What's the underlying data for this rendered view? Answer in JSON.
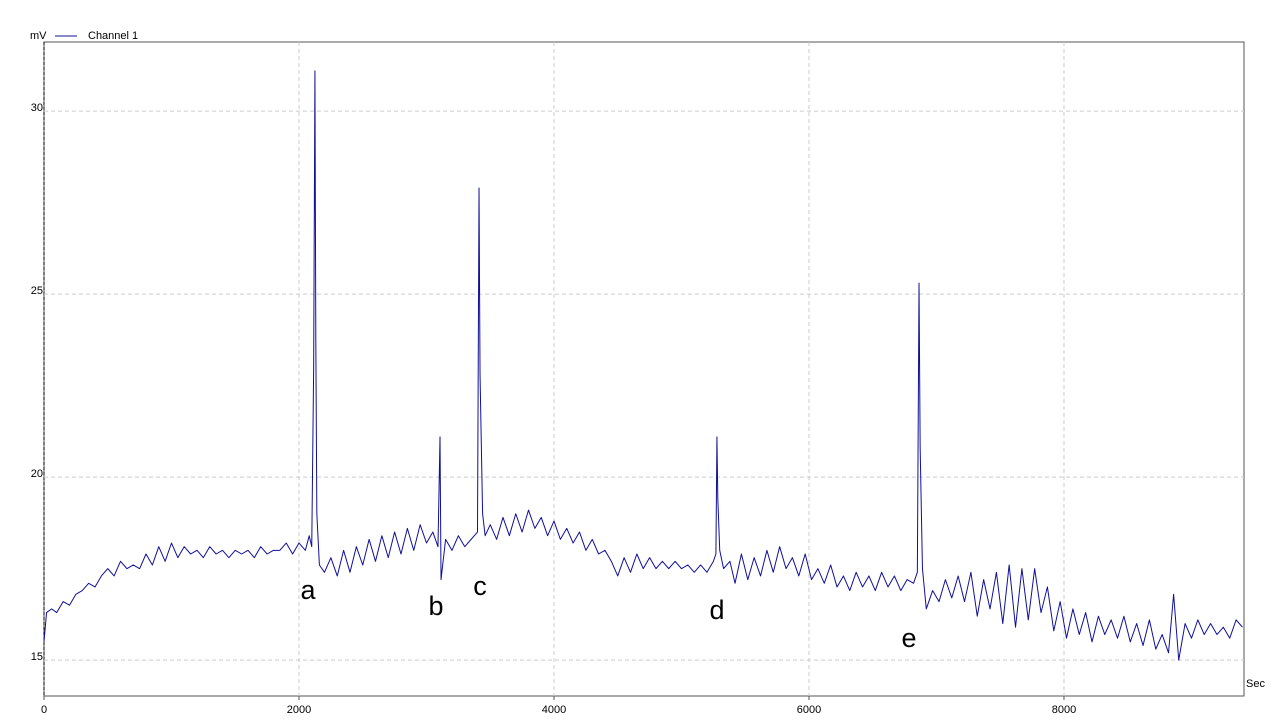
{
  "chart_data": {
    "type": "line",
    "y_unit": "mV",
    "x_unit": "Sec",
    "xlim": [
      0,
      9412
    ],
    "ylim": [
      14.02,
      31.89
    ],
    "xticks": [
      0,
      2000,
      4000,
      6000,
      8000
    ],
    "yticks": [
      15,
      20,
      25,
      30
    ],
    "grid": true,
    "annotations": [
      "a",
      "b",
      "c",
      "d",
      "e"
    ],
    "x": [
      0,
      20,
      60,
      100,
      150,
      200,
      250,
      300,
      350,
      400,
      450,
      500,
      550,
      600,
      650,
      700,
      750,
      800,
      850,
      900,
      950,
      1000,
      1050,
      1100,
      1150,
      1200,
      1250,
      1300,
      1350,
      1400,
      1450,
      1500,
      1550,
      1600,
      1650,
      1700,
      1750,
      1800,
      1850,
      1900,
      1950,
      2000,
      2050,
      2080,
      2100,
      2115,
      2125,
      2132,
      2140,
      2160,
      2200,
      2250,
      2300,
      2350,
      2400,
      2450,
      2500,
      2550,
      2600,
      2650,
      2700,
      2750,
      2800,
      2850,
      2900,
      2950,
      3000,
      3050,
      3090,
      3106,
      3114,
      3150,
      3200,
      3250,
      3300,
      3350,
      3400,
      3412,
      3420,
      3440,
      3460,
      3500,
      3550,
      3600,
      3650,
      3700,
      3750,
      3800,
      3850,
      3900,
      3950,
      4000,
      4050,
      4100,
      4150,
      4200,
      4250,
      4300,
      4350,
      4400,
      4450,
      4500,
      4550,
      4600,
      4650,
      4700,
      4750,
      4800,
      4850,
      4900,
      4950,
      5000,
      5050,
      5100,
      5150,
      5200,
      5250,
      5270,
      5278,
      5285,
      5300,
      5330,
      5380,
      5420,
      5470,
      5520,
      5570,
      5620,
      5670,
      5720,
      5770,
      5820,
      5870,
      5920,
      5970,
      6020,
      6070,
      6120,
      6170,
      6220,
      6270,
      6320,
      6370,
      6420,
      6470,
      6520,
      6570,
      6620,
      6670,
      6720,
      6770,
      6820,
      6850,
      6863,
      6872,
      6890,
      6920,
      6970,
      7020,
      7070,
      7120,
      7170,
      7220,
      7270,
      7320,
      7370,
      7420,
      7470,
      7520,
      7570,
      7620,
      7670,
      7720,
      7770,
      7820,
      7870,
      7920,
      7970,
      8020,
      8070,
      8120,
      8170,
      8220,
      8270,
      8320,
      8370,
      8420,
      8470,
      8520,
      8570,
      8620,
      8670,
      8720,
      8770,
      8820,
      8860,
      8900,
      8950,
      9000,
      9050,
      9100,
      9150,
      9200,
      9250,
      9300,
      9350,
      9400
    ],
    "series": [
      {
        "name": "Channel 1",
        "color": "#10109a",
        "values": [
          15.5,
          16.3,
          16.4,
          16.3,
          16.6,
          16.5,
          16.8,
          16.9,
          17.1,
          17.0,
          17.3,
          17.5,
          17.3,
          17.7,
          17.5,
          17.6,
          17.5,
          17.9,
          17.6,
          18.1,
          17.7,
          18.2,
          17.8,
          18.1,
          17.9,
          18.0,
          17.8,
          18.1,
          17.9,
          18.0,
          17.8,
          18.0,
          17.9,
          18.0,
          17.8,
          18.1,
          17.9,
          18.0,
          18.0,
          18.2,
          17.9,
          18.2,
          18.0,
          18.4,
          18.1,
          23.0,
          31.1,
          23.7,
          19.0,
          17.6,
          17.4,
          17.8,
          17.3,
          18.0,
          17.4,
          18.1,
          17.6,
          18.3,
          17.7,
          18.4,
          17.8,
          18.5,
          17.9,
          18.6,
          18.0,
          18.7,
          18.2,
          18.5,
          18.1,
          21.1,
          17.2,
          18.3,
          18.0,
          18.4,
          18.1,
          18.3,
          18.5,
          27.9,
          22.8,
          19.0,
          18.4,
          18.7,
          18.3,
          18.9,
          18.4,
          19.0,
          18.5,
          19.1,
          18.6,
          18.9,
          18.4,
          18.8,
          18.3,
          18.6,
          18.2,
          18.5,
          18.0,
          18.3,
          17.9,
          18.0,
          17.7,
          17.3,
          17.8,
          17.4,
          17.9,
          17.5,
          17.8,
          17.5,
          17.7,
          17.5,
          17.7,
          17.5,
          17.6,
          17.4,
          17.6,
          17.4,
          17.7,
          17.9,
          21.1,
          19.4,
          18.0,
          17.5,
          17.7,
          17.1,
          17.9,
          17.2,
          17.8,
          17.3,
          18.0,
          17.4,
          18.1,
          17.5,
          17.8,
          17.3,
          17.9,
          17.2,
          17.5,
          17.1,
          17.6,
          17.0,
          17.3,
          16.9,
          17.4,
          17.0,
          17.3,
          16.9,
          17.4,
          17.0,
          17.3,
          16.9,
          17.2,
          17.1,
          17.4,
          25.3,
          20.8,
          17.5,
          16.4,
          16.9,
          16.6,
          17.2,
          16.7,
          17.3,
          16.6,
          17.4,
          16.2,
          17.2,
          16.4,
          17.4,
          16.0,
          17.6,
          15.9,
          17.5,
          16.1,
          17.5,
          16.3,
          17.0,
          15.8,
          16.6,
          15.6,
          16.4,
          15.7,
          16.3,
          15.5,
          16.2,
          15.7,
          16.1,
          15.6,
          16.2,
          15.5,
          16.0,
          15.4,
          16.1,
          15.3,
          15.7,
          15.2,
          16.8,
          15.0,
          16.0,
          15.6,
          16.1,
          15.7,
          16.0,
          15.7,
          15.9,
          15.6,
          16.1,
          15.9
        ]
      }
    ]
  }
}
